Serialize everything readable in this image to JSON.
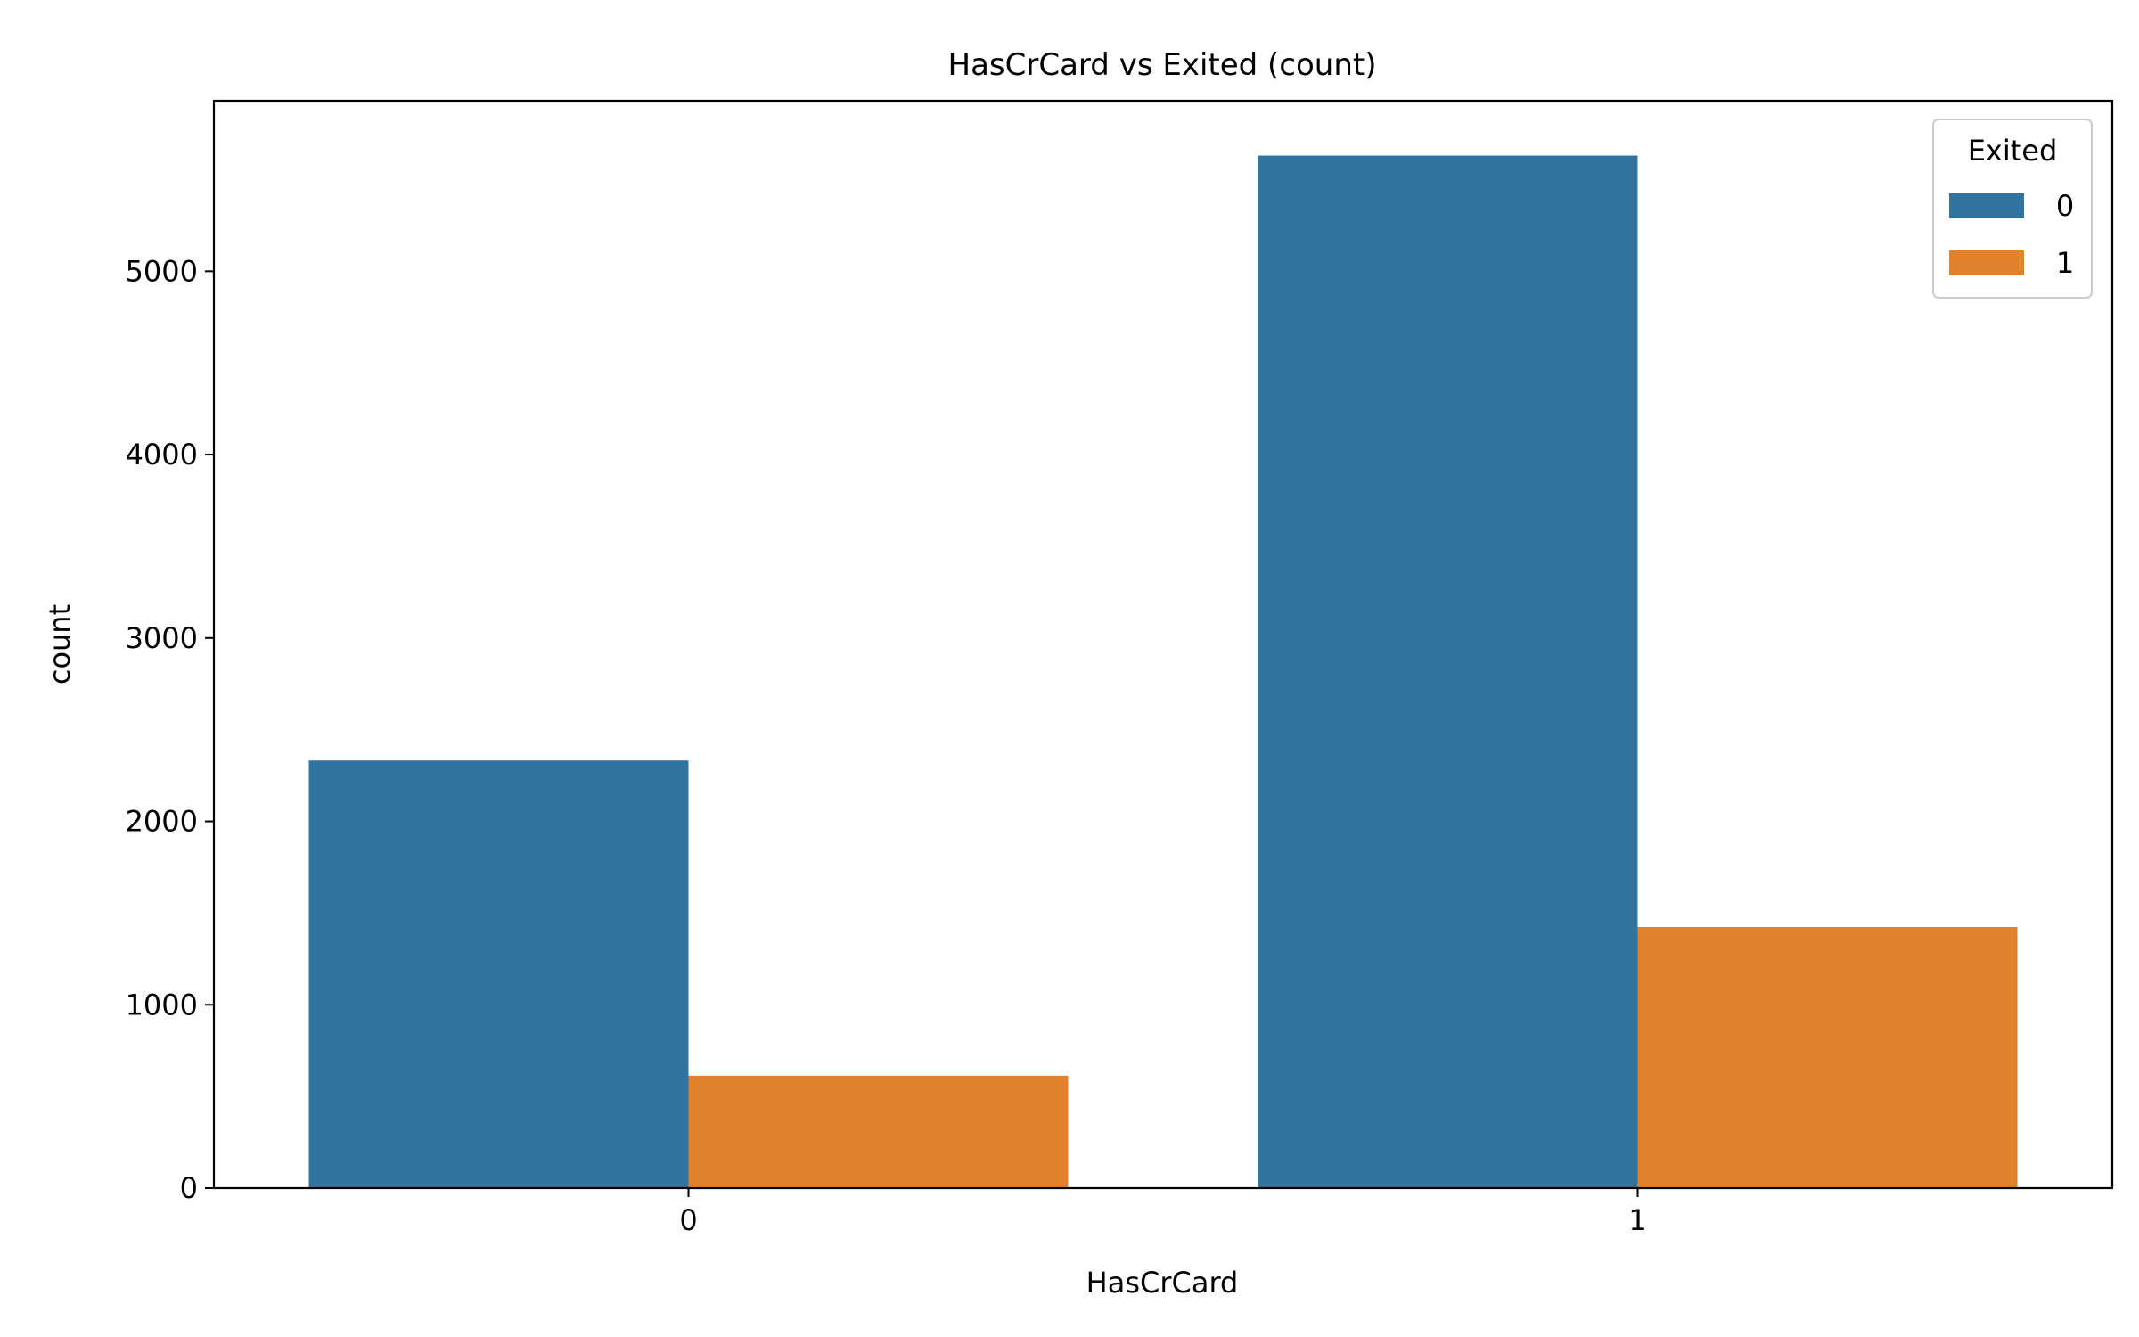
{
  "chart_data": {
    "type": "bar",
    "title": "HasCrCard vs Exited (count)",
    "xlabel": "HasCrCard",
    "ylabel": "count",
    "categories": [
      "0",
      "1"
    ],
    "series": [
      {
        "name": "0",
        "color": "#3274a1",
        "values": [
          2332,
          5631
        ]
      },
      {
        "name": "1",
        "color": "#e1812c",
        "values": [
          613,
          1424
        ]
      }
    ],
    "ylim": [
      0,
      5930
    ],
    "yticks": [
      0,
      1000,
      2000,
      3000,
      4000,
      5000
    ],
    "grid": false,
    "legend": {
      "title": "Exited",
      "placement": "top-right"
    }
  }
}
